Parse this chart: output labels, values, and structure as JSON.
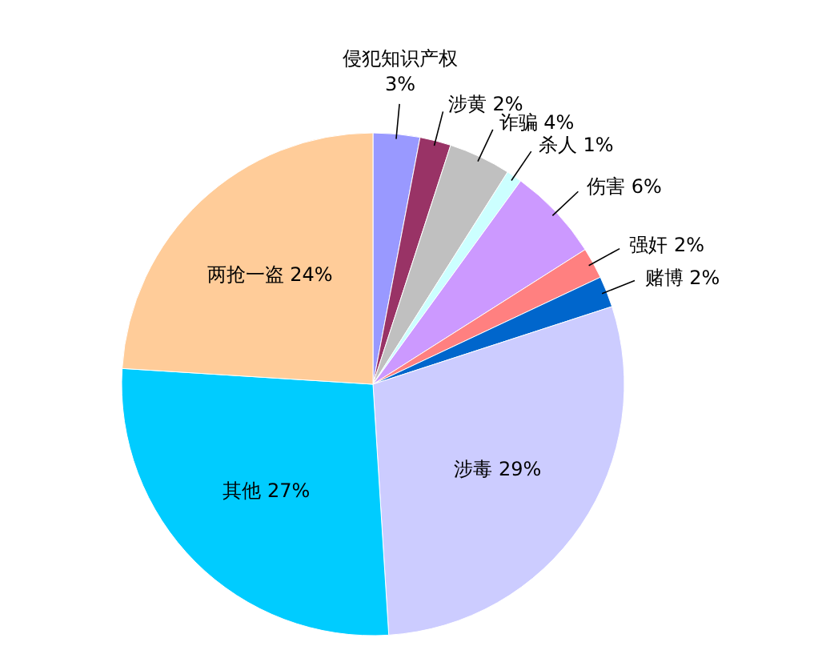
{
  "chart_data": {
    "type": "pie",
    "categories": [
      "侵犯知识产权",
      "涉黄",
      "诈骗",
      "杀人",
      "伤害",
      "强奸",
      "赌博",
      "涉毒",
      "其他",
      "两抢一盗"
    ],
    "values": [
      3,
      2,
      4,
      1,
      6,
      2,
      2,
      29,
      27,
      24
    ],
    "value_labels": [
      "3%",
      "2%",
      "4%",
      "1%",
      "6%",
      "2%",
      "2%",
      "29%",
      "27%",
      "24%"
    ],
    "colors": [
      "#9999ff",
      "#993366",
      "#c0c0c0",
      "#ccffff",
      "#cc99ff",
      "#ff8080",
      "#0066cc",
      "#ccccff",
      "#00ccff",
      "#ffcc99"
    ],
    "legend": false
  }
}
